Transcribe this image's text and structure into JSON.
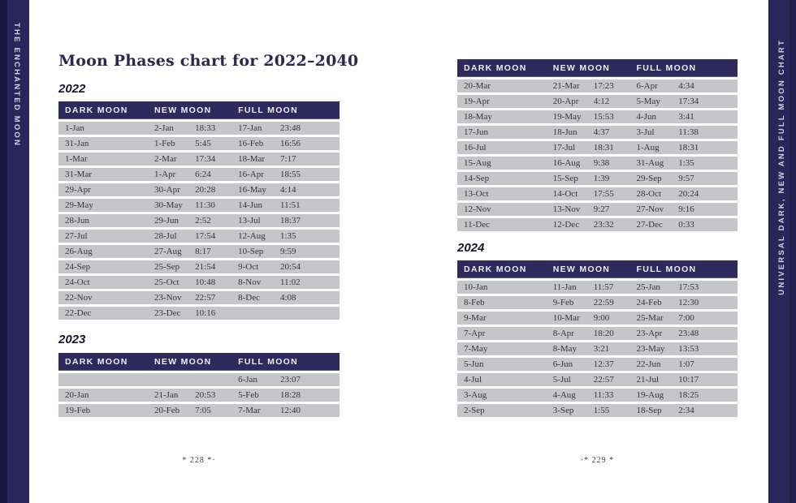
{
  "book": {
    "left_spine": "THE ENCHANTED MOON",
    "right_spine": "UNIVERSAL DARK, NEW AND FULL MOON CHART",
    "title": "Moon Phases chart for 2022–2040",
    "footer_left": "* 228 *·",
    "footer_right": "·* 229 *"
  },
  "colors": {
    "navy": "#2e2a5e",
    "row_gray": "#c6c5ca"
  },
  "columns": {
    "dark": "DARK MOON",
    "new": "NEW MOON",
    "full": "FULL MOON"
  },
  "tables": [
    {
      "year": "2022",
      "rows": [
        [
          "1-Jan",
          "2-Jan",
          "18:33",
          "17-Jan",
          "23:48"
        ],
        [
          "31-Jan",
          "1-Feb",
          "5:45",
          "16-Feb",
          "16:56"
        ],
        [
          "1-Mar",
          "2-Mar",
          "17:34",
          "18-Mar",
          "7:17"
        ],
        [
          "31-Mar",
          "1-Apr",
          "6:24",
          "16-Apr",
          "18:55"
        ],
        [
          "29-Apr",
          "30-Apr",
          "20:28",
          "16-May",
          "4:14"
        ],
        [
          "29-May",
          "30-May",
          "11:30",
          "14-Jun",
          "11:51"
        ],
        [
          "28-Jun",
          "29-Jun",
          "2:52",
          "13-Jul",
          "18:37"
        ],
        [
          "27-Jul",
          "28-Jul",
          "17:54",
          "12-Aug",
          "1:35"
        ],
        [
          "26-Aug",
          "27-Aug",
          "8:17",
          "10-Sep",
          "9:59"
        ],
        [
          "24-Sep",
          "25-Sep",
          "21:54",
          "9-Oct",
          "20:54"
        ],
        [
          "24-Oct",
          "25-Oct",
          "10:48",
          "8-Nov",
          "11:02"
        ],
        [
          "22-Nov",
          "23-Nov",
          "22:57",
          "8-Dec",
          "4:08"
        ],
        [
          "22-Dec",
          "23-Dec",
          "10:16",
          "",
          ""
        ]
      ]
    },
    {
      "year": "2023",
      "rows": [
        [
          "",
          "",
          "",
          "6-Jan",
          "23:07"
        ],
        [
          "20-Jan",
          "21-Jan",
          "20:53",
          "5-Feb",
          "18:28"
        ],
        [
          "19-Feb",
          "20-Feb",
          "7:05",
          "7-Mar",
          "12:40"
        ]
      ]
    },
    {
      "year": "",
      "rows": [
        [
          "20-Mar",
          "21-Mar",
          "17:23",
          "6-Apr",
          "4:34"
        ],
        [
          "19-Apr",
          "20-Apr",
          "4:12",
          "5-May",
          "17:34"
        ],
        [
          "18-May",
          "19-May",
          "15:53",
          "4-Jun",
          "3:41"
        ],
        [
          "17-Jun",
          "18-Jun",
          "4:37",
          "3-Jul",
          "11:38"
        ],
        [
          "16-Jul",
          "17-Jul",
          "18:31",
          "1-Aug",
          "18:31"
        ],
        [
          "15-Aug",
          "16-Aug",
          "9:38",
          "31-Aug",
          "1:35"
        ],
        [
          "14-Sep",
          "15-Sep",
          "1:39",
          "29-Sep",
          "9:57"
        ],
        [
          "13-Oct",
          "14-Oct",
          "17:55",
          "28-Oct",
          "20:24"
        ],
        [
          "12-Nov",
          "13-Nov",
          "9:27",
          "27-Nov",
          "9:16"
        ],
        [
          "11-Dec",
          "12-Dec",
          "23:32",
          "27-Dec",
          "0:33"
        ]
      ]
    },
    {
      "year": "2024",
      "rows": [
        [
          "10-Jan",
          "11-Jan",
          "11:57",
          "25-Jan",
          "17:53"
        ],
        [
          "8-Feb",
          "9-Feb",
          "22:59",
          "24-Feb",
          "12:30"
        ],
        [
          "9-Mar",
          "10-Mar",
          "9:00",
          "25-Mar",
          "7:00"
        ],
        [
          "7-Apr",
          "8-Apr",
          "18:20",
          "23-Apr",
          "23:48"
        ],
        [
          "7-May",
          "8-May",
          "3:21",
          "23-May",
          "13:53"
        ],
        [
          "5-Jun",
          "6-Jun",
          "12:37",
          "22-Jun",
          "1:07"
        ],
        [
          "4-Jul",
          "5-Jul",
          "22:57",
          "21-Jul",
          "10:17"
        ],
        [
          "3-Aug",
          "4-Aug",
          "11:33",
          "19-Aug",
          "18:25"
        ],
        [
          "2-Sep",
          "3-Sep",
          "1:55",
          "18-Sep",
          "2:34"
        ]
      ]
    }
  ]
}
